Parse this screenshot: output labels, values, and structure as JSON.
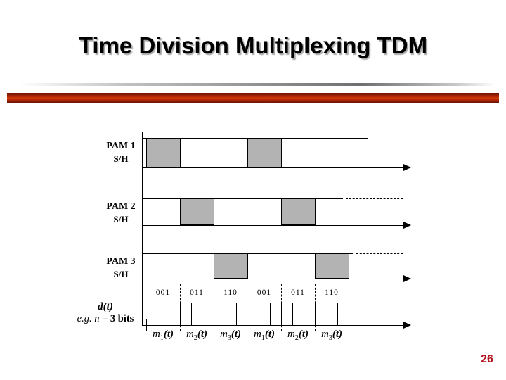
{
  "slide": {
    "title": "Time Division Multiplexing TDM",
    "page_number": "26"
  },
  "colors": {
    "accent_bar": "#a82506",
    "sample_box_fill": "#b3b3b3",
    "page_number_color": "#b5121f",
    "line_color": "#000000"
  },
  "diagram": {
    "channels": [
      {
        "name": "PAM 1",
        "sub": "S/H",
        "sample_slots": [
          0,
          3
        ]
      },
      {
        "name": "PAM 2",
        "sub": "S/H",
        "sample_slots": [
          1,
          4
        ]
      },
      {
        "name": "PAM 3",
        "sub": "S/H",
        "sample_slots": [
          2,
          5
        ]
      }
    ],
    "dt": {
      "label": "d(t)",
      "note_prefix": "e.g. n",
      "note_eq": " = ",
      "note_bold": "3 bits",
      "bits": [
        "001",
        "011",
        "110",
        "001",
        "011",
        "110"
      ],
      "slot_labels": [
        {
          "base": "m",
          "sub": "1",
          "arg": "(t)"
        },
        {
          "base": "m",
          "sub": "2",
          "arg": "(t)"
        },
        {
          "base": "m",
          "sub": "3",
          "arg": "(t)"
        },
        {
          "base": "m",
          "sub": "1",
          "arg": "(t)"
        },
        {
          "base": "m",
          "sub": "2",
          "arg": "(t)"
        },
        {
          "base": "m",
          "sub": "3",
          "arg": "(t)"
        }
      ]
    }
  }
}
